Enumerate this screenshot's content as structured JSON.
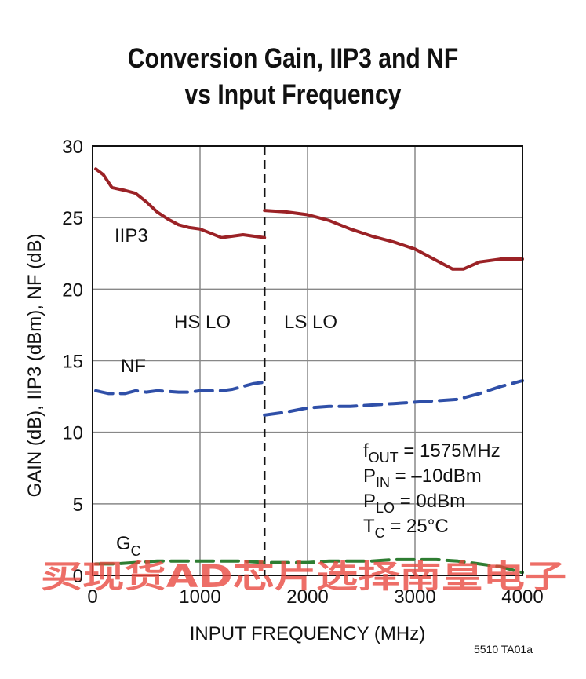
{
  "chart_data": {
    "type": "line",
    "title_line1": "Conversion Gain, IIP3 and NF",
    "title_line2": "vs Input Frequency",
    "xlabel": "INPUT FREQUENCY (MHz)",
    "ylabel": "GAIN (dB),  IIP3 (dBm), NF (dB)",
    "xlim": [
      0,
      4000
    ],
    "ylim": [
      0,
      30
    ],
    "x_ticks": [
      "0",
      "1000",
      "2000",
      "3000",
      "4000"
    ],
    "y_ticks": [
      "0",
      "5",
      "10",
      "15",
      "20",
      "25",
      "30"
    ],
    "grid": true,
    "divider_x": 1600,
    "region_labels": [
      "HS LO",
      "LS LO"
    ],
    "series": [
      {
        "name": "IIP3",
        "color": "#9b2226",
        "style": "solid",
        "segments": [
          {
            "x": [
              30,
              100,
              180,
              300,
              400,
              500,
              600,
              700,
              800,
              900,
              1000,
              1100,
              1200,
              1300,
              1400,
              1500,
              1600
            ],
            "y": [
              28.4,
              28.0,
              27.1,
              26.9,
              26.7,
              26.1,
              25.4,
              24.9,
              24.5,
              24.3,
              24.2,
              23.9,
              23.6,
              23.7,
              23.8,
              23.7,
              23.6
            ]
          },
          {
            "x": [
              1600,
              1800,
              2000,
              2200,
              2400,
              2600,
              2800,
              3000,
              3200,
              3350,
              3450,
              3600,
              3800,
              4000
            ],
            "y": [
              25.5,
              25.4,
              25.2,
              24.8,
              24.2,
              23.7,
              23.3,
              22.8,
              22.0,
              21.4,
              21.4,
              21.9,
              22.1,
              22.1
            ]
          }
        ]
      },
      {
        "name": "NF",
        "color": "#2f4fa8",
        "style": "dashed",
        "segments": [
          {
            "x": [
              30,
              150,
              300,
              400,
              500,
              600,
              800,
              900,
              1000,
              1100,
              1200,
              1300,
              1400,
              1500,
              1600
            ],
            "y": [
              12.9,
              12.7,
              12.7,
              12.9,
              12.8,
              12.9,
              12.8,
              12.8,
              12.9,
              12.9,
              12.9,
              13.0,
              13.2,
              13.4,
              13.5
            ]
          },
          {
            "x": [
              1600,
              1800,
              2000,
              2200,
              2400,
              2600,
              2800,
              3000,
              3200,
              3400,
              3600,
              3800,
              4000
            ],
            "y": [
              11.2,
              11.4,
              11.7,
              11.8,
              11.8,
              11.9,
              12.0,
              12.1,
              12.2,
              12.3,
              12.7,
              13.2,
              13.6
            ]
          }
        ]
      },
      {
        "name": "G",
        "name_subscript": "C",
        "color": "#2e7d32",
        "style": "dashed",
        "segments": [
          {
            "x": [
              30,
              200,
              400,
              600,
              800,
              1000,
              1200,
              1400,
              1600,
              1800,
              2000,
              2200,
              2400,
              2600,
              2800,
              3000,
              3200,
              3400,
              3600,
              3800,
              4000
            ],
            "y": [
              0.8,
              0.8,
              0.9,
              1.0,
              1.0,
              1.0,
              1.0,
              1.0,
              0.9,
              0.9,
              0.9,
              1.0,
              1.0,
              1.0,
              1.1,
              1.1,
              1.1,
              1.0,
              0.8,
              0.6,
              0.2
            ]
          }
        ]
      }
    ],
    "conditions": [
      {
        "main": "f",
        "sub": "OUT",
        "rest": " = 1575MHz"
      },
      {
        "main": "P",
        "sub": "IN",
        "rest": " = –10dBm"
      },
      {
        "main": "P",
        "sub": "LO",
        "rest": " = 0dBm"
      },
      {
        "main": "T",
        "sub": "C",
        "rest": " = 25°C"
      }
    ]
  },
  "watermark": "买现货AD芯片选择南皇电子",
  "figure_code": "5510 TA01a"
}
